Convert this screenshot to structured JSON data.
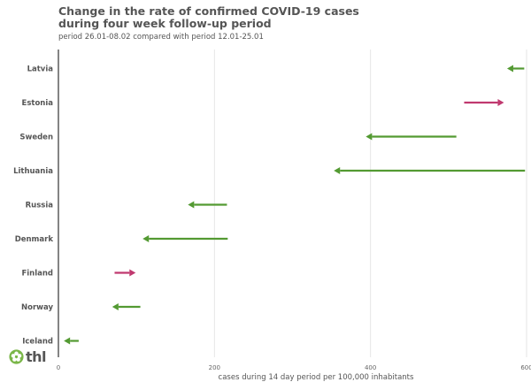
{
  "brand": {
    "name": "thl",
    "color": "#7ab648"
  },
  "colors": {
    "decrease": "#539a32",
    "increase": "#c0396f"
  },
  "chart_data": {
    "type": "arrow",
    "title_lines": [
      "Change in the rate of confirmed COVID-19 cases",
      "during four week follow-up period"
    ],
    "subtitle": "period 26.01-08.02 compared with period 12.01-25.01",
    "xlabel": "cases during 14 day period per 100,000 inhabitants",
    "xlim": [
      0,
      600
    ],
    "xticks": [
      0,
      200,
      400,
      600
    ],
    "xtick_labels": [
      "0",
      "200",
      "400",
      "600"
    ],
    "grid": true,
    "series": [
      {
        "country": "Latvia",
        "from": 597,
        "to": 575
      },
      {
        "country": "Estonia",
        "from": 520,
        "to": 571
      },
      {
        "country": "Sweden",
        "from": 510,
        "to": 394
      },
      {
        "country": "Lithuania",
        "from": 598,
        "to": 353
      },
      {
        "country": "Russia",
        "from": 216,
        "to": 166
      },
      {
        "country": "Denmark",
        "from": 217,
        "to": 108
      },
      {
        "country": "Finland",
        "from": 72,
        "to": 99
      },
      {
        "country": "Norway",
        "from": 105,
        "to": 69
      },
      {
        "country": "Iceland",
        "from": 26,
        "to": 7
      }
    ]
  }
}
